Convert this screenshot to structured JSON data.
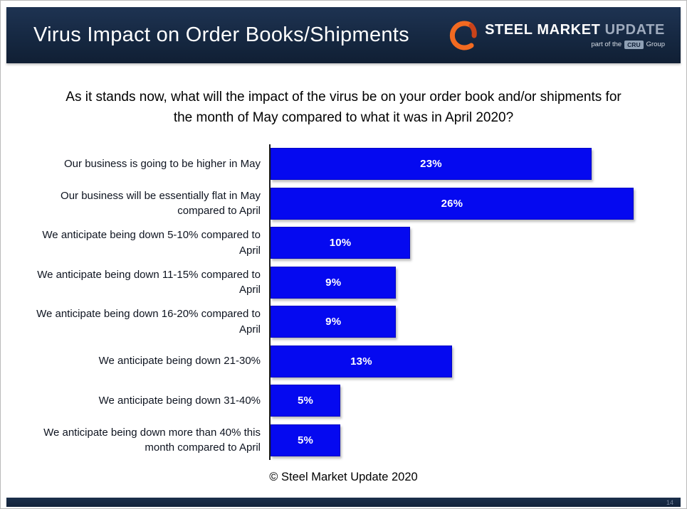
{
  "slide": {
    "title": "Virus Impact on Order Books/Shipments",
    "footer": "© Steel Market Update 2020",
    "page_number": "14"
  },
  "logo": {
    "steel": "STEEL",
    "market": "MARKET",
    "update": "UPDATE",
    "tag_prefix": "part of the",
    "tag_cru": "CRU",
    "tag_suffix": "Group"
  },
  "question": "As it stands now, what will the impact of the virus be on your order book and/or shipments for the month of May compared to what it was in April 2020?",
  "chart_data": {
    "type": "bar",
    "orientation": "horizontal",
    "title": "",
    "categories": [
      "Our business is going to be higher in May",
      "Our business will be essentially flat in May compared to April",
      "We anticipate being down 5-10% compared to April",
      "We anticipate being down 11-15% compared to April",
      "We anticipate being down 16-20% compared to April",
      "We anticipate being down 21-30%",
      "We anticipate being down 31-40%",
      "We anticipate being down more than 40% this month compared to April"
    ],
    "values": [
      23,
      26,
      10,
      9,
      9,
      13,
      5,
      5
    ],
    "value_labels": [
      "23%",
      "26%",
      "10%",
      "9%",
      "9%",
      "13%",
      "5%",
      "5%"
    ],
    "unit": "%",
    "axis_max": 28,
    "grid": false,
    "legend": false,
    "bar_color": "#0509f0"
  },
  "colors": {
    "header_bg": "#152740",
    "bar_blue": "#0509f0",
    "accent_orange": "#f26a21",
    "text_dark": "#0e1420"
  }
}
